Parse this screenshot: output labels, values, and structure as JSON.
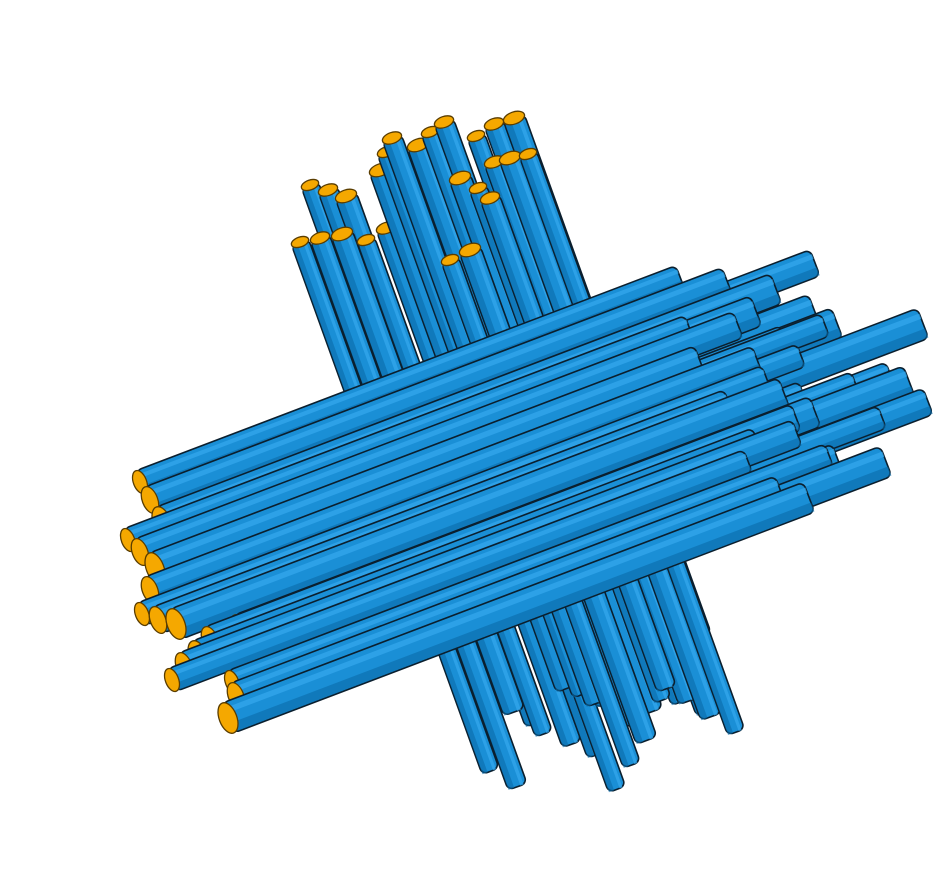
{
  "figure": {
    "subject": "rod-bundle-illustration",
    "groups": [
      {
        "name": "vertical-bundle",
        "rod_count": 28
      },
      {
        "name": "horizontal-bundle",
        "rod_count": 36
      }
    ],
    "colors": {
      "rod_body": "#1a8fd6",
      "rod_shade": "#0a6aa8",
      "rod_highlight": "#36a8ee",
      "rod_outline": "#0b1f2e",
      "rod_end": "#f5a800",
      "rod_end_outline": "#5a3d00",
      "background": "#ffffff"
    }
  }
}
